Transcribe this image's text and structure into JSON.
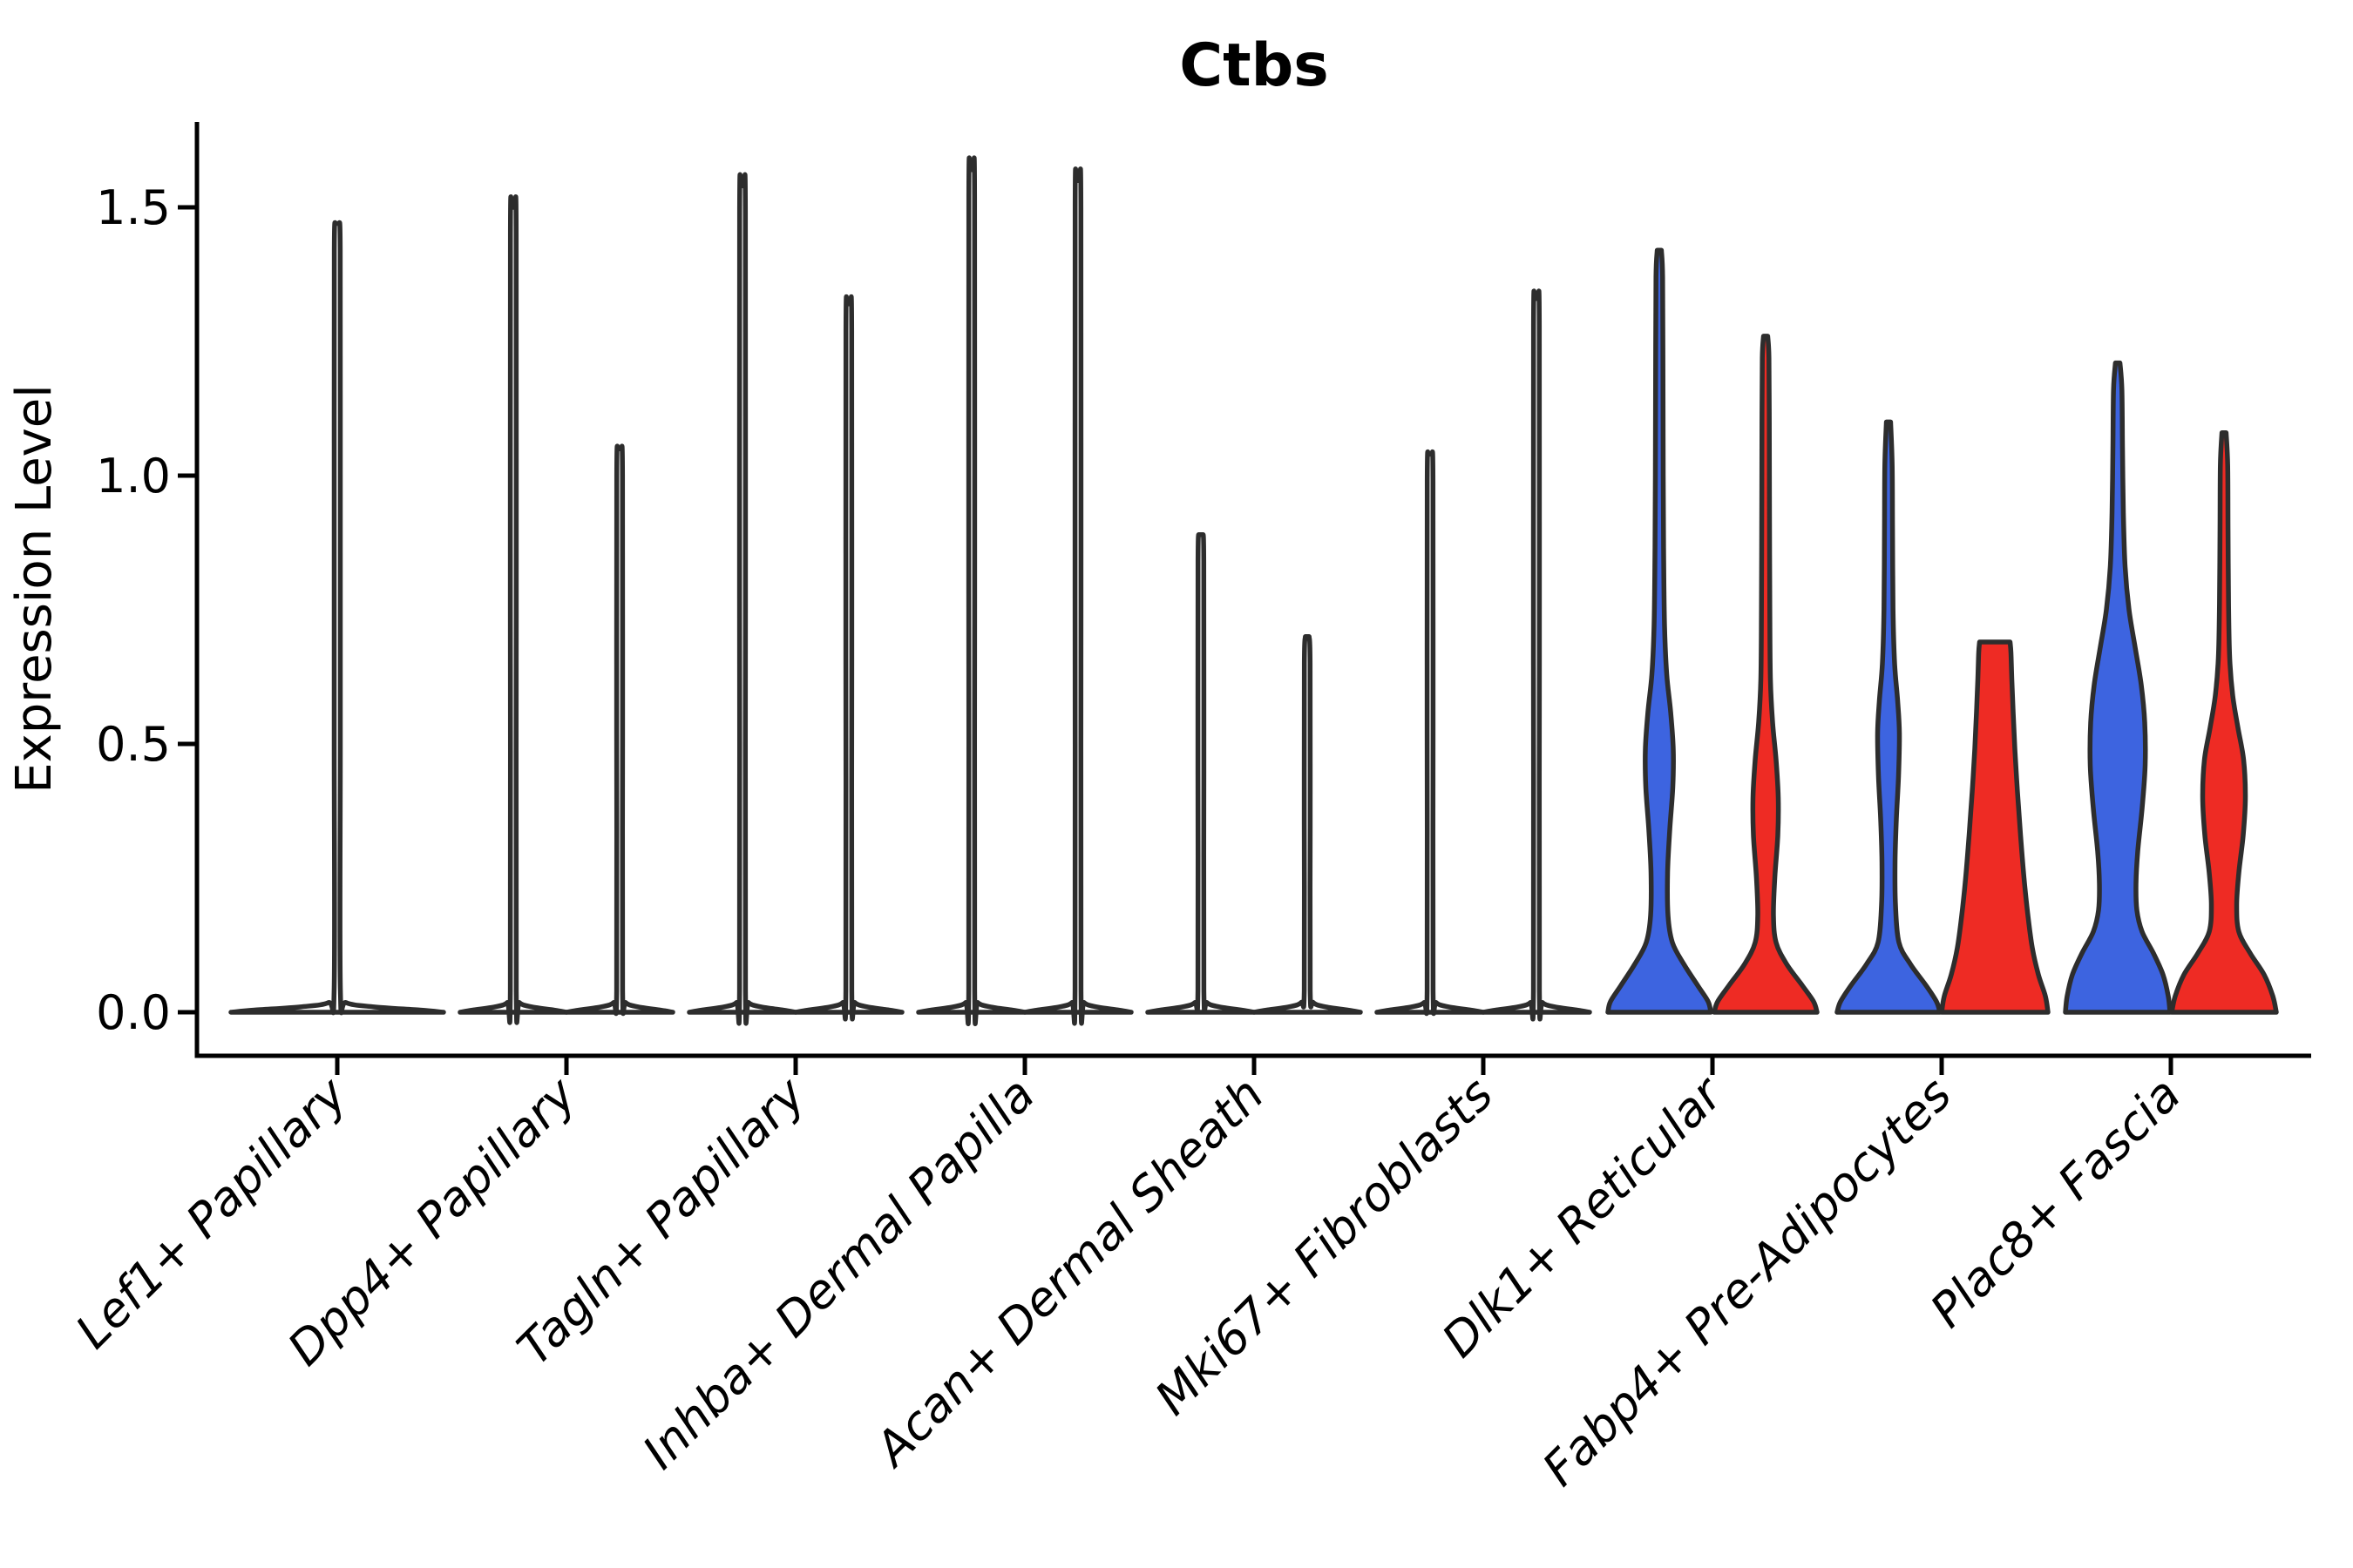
{
  "title": "Ctbs",
  "axes": {
    "y": {
      "label": "Expression Level",
      "ticks": [
        {
          "value": 0.0,
          "label": "0.0"
        },
        {
          "value": 0.5,
          "label": "0.5"
        },
        {
          "value": 1.0,
          "label": "1.0"
        },
        {
          "value": 1.5,
          "label": "1.5"
        }
      ],
      "lim": [
        -0.08,
        1.66
      ]
    },
    "x": {
      "categories": [
        "Lef1+ Papillary",
        "Dpp4+ Papillary",
        "Tagln+ Papillary",
        "Inhba+ Dermal Papilla",
        "Acan+ Dermal Sheath",
        "Mki67+ Fibroblasts",
        "Dlk1+ Reticular",
        "Fabp4+ Pre-Adipocytes",
        "Plac8+ Fascia"
      ],
      "tick_rotation_deg": 45
    }
  },
  "style": {
    "blue": "#3d64e0",
    "red": "#ee2b24",
    "outline": "#2d2d2d",
    "spine": "#000000",
    "background": "#ffffff",
    "unfilled_violin": "#ffffff"
  },
  "chart_data": {
    "type": "violin",
    "title": "Ctbs",
    "ylabel": "Expression Level",
    "ylim": [
      -0.08,
      1.66
    ],
    "yticks": [
      0.0,
      0.5,
      1.0,
      1.5
    ],
    "legend": "none",
    "grid": false,
    "categories": [
      "Lef1+ Papillary",
      "Dpp4+ Papillary",
      "Tagln+ Papillary",
      "Inhba+ Dermal Papilla",
      "Acan+ Dermal Sheath",
      "Mki67+ Fibroblasts",
      "Dlk1+ Reticular",
      "Fabp4+ Pre-Adipocytes",
      "Plac8+ Fascia"
    ],
    "note_profile_format": "profile = [expression_value, half_width_px]; density mass concentrated at 0 for all groups",
    "violins": [
      {
        "category_index": 0,
        "position": "center",
        "fill": "#ffffff",
        "peak": 1.47,
        "profile": [
          [
            0,
            122
          ],
          [
            0.004,
            95
          ],
          [
            0.01,
            42
          ],
          [
            0.018,
            10
          ],
          [
            0.04,
            3.6
          ],
          [
            0.5,
            3.5
          ],
          [
            1.0,
            3.5
          ],
          [
            1.42,
            3.4
          ],
          [
            1.47,
            2.2
          ]
        ]
      },
      {
        "category_index": 1,
        "position": "left",
        "fill": "#ffffff",
        "peak": 1.5,
        "profile": [
          [
            0,
            61
          ],
          [
            0.004,
            47
          ],
          [
            0.01,
            21
          ],
          [
            0.018,
            7
          ],
          [
            0.04,
            3.4
          ],
          [
            0.75,
            3.4
          ],
          [
            1.45,
            3.3
          ],
          [
            1.5,
            2.2
          ]
        ]
      },
      {
        "category_index": 1,
        "position": "right",
        "fill": "#ffffff",
        "peak": 1.05,
        "profile": [
          [
            0,
            61
          ],
          [
            0.004,
            47
          ],
          [
            0.01,
            21
          ],
          [
            0.018,
            7
          ],
          [
            0.04,
            3.4
          ],
          [
            0.52,
            3.4
          ],
          [
            1.0,
            3.3
          ],
          [
            1.05,
            2.2
          ]
        ]
      },
      {
        "category_index": 2,
        "position": "left",
        "fill": "#ffffff",
        "peak": 1.54,
        "profile": [
          [
            0,
            61
          ],
          [
            0.004,
            47
          ],
          [
            0.01,
            21
          ],
          [
            0.018,
            7
          ],
          [
            0.04,
            3.4
          ],
          [
            0.77,
            3.4
          ],
          [
            1.49,
            3.3
          ],
          [
            1.54,
            2.2
          ]
        ]
      },
      {
        "category_index": 2,
        "position": "right",
        "fill": "#ffffff",
        "peak": 1.32,
        "profile": [
          [
            0,
            61
          ],
          [
            0.004,
            47
          ],
          [
            0.01,
            21
          ],
          [
            0.018,
            7
          ],
          [
            0.04,
            3.4
          ],
          [
            0.66,
            3.4
          ],
          [
            1.27,
            3.3
          ],
          [
            1.32,
            2.2
          ]
        ]
      },
      {
        "category_index": 3,
        "position": "left",
        "fill": "#ffffff",
        "peak": 1.57,
        "profile": [
          [
            0,
            61
          ],
          [
            0.004,
            47
          ],
          [
            0.01,
            21
          ],
          [
            0.018,
            7
          ],
          [
            0.04,
            3.4
          ],
          [
            0.78,
            3.4
          ],
          [
            1.52,
            3.3
          ],
          [
            1.57,
            2.2
          ]
        ]
      },
      {
        "category_index": 3,
        "position": "right",
        "fill": "#ffffff",
        "peak": 1.55,
        "profile": [
          [
            0,
            61
          ],
          [
            0.004,
            47
          ],
          [
            0.01,
            21
          ],
          [
            0.018,
            7
          ],
          [
            0.04,
            3.4
          ],
          [
            0.77,
            3.4
          ],
          [
            1.5,
            3.3
          ],
          [
            1.55,
            2.2
          ]
        ]
      },
      {
        "category_index": 4,
        "position": "left",
        "fill": "#ffffff",
        "peak": 0.89,
        "profile": [
          [
            0,
            61
          ],
          [
            0.004,
            47
          ],
          [
            0.01,
            21
          ],
          [
            0.018,
            7
          ],
          [
            0.04,
            3.4
          ],
          [
            0.45,
            3.4
          ],
          [
            0.84,
            3.3
          ],
          [
            0.89,
            2.2
          ]
        ]
      },
      {
        "category_index": 4,
        "position": "right",
        "fill": "#ffffff",
        "peak": 0.7,
        "profile": [
          [
            0,
            61
          ],
          [
            0.004,
            47
          ],
          [
            0.01,
            21
          ],
          [
            0.018,
            7
          ],
          [
            0.04,
            3.4
          ],
          [
            0.35,
            3.4
          ],
          [
            0.65,
            3.3
          ],
          [
            0.7,
            2.2
          ]
        ]
      },
      {
        "category_index": 5,
        "position": "left",
        "fill": "#ffffff",
        "peak": 1.04,
        "profile": [
          [
            0,
            61
          ],
          [
            0.004,
            47
          ],
          [
            0.01,
            21
          ],
          [
            0.018,
            7
          ],
          [
            0.04,
            3.4
          ],
          [
            0.52,
            3.4
          ],
          [
            0.99,
            3.3
          ],
          [
            1.04,
            2.2
          ]
        ]
      },
      {
        "category_index": 5,
        "position": "right",
        "fill": "#ffffff",
        "peak": 1.33,
        "profile": [
          [
            0,
            61
          ],
          [
            0.004,
            47
          ],
          [
            0.01,
            21
          ],
          [
            0.018,
            7
          ],
          [
            0.04,
            3.4
          ],
          [
            0.66,
            3.4
          ],
          [
            1.28,
            3.3
          ],
          [
            1.33,
            2.2
          ]
        ]
      },
      {
        "category_index": 6,
        "position": "left",
        "fill": "#3d64e0",
        "peak": 1.42,
        "profile": [
          [
            0,
            59
          ],
          [
            0.02,
            56
          ],
          [
            0.05,
            44
          ],
          [
            0.09,
            28
          ],
          [
            0.13,
            15
          ],
          [
            0.18,
            10
          ],
          [
            0.26,
            9.5
          ],
          [
            0.34,
            12
          ],
          [
            0.42,
            15.5
          ],
          [
            0.49,
            16
          ],
          [
            0.56,
            13
          ],
          [
            0.63,
            8.5
          ],
          [
            0.72,
            6
          ],
          [
            0.85,
            5
          ],
          [
            1.0,
            4.5
          ],
          [
            1.2,
            4.2
          ],
          [
            1.37,
            3.8
          ],
          [
            1.42,
            2.4
          ]
        ]
      },
      {
        "category_index": 6,
        "position": "right",
        "fill": "#ee2b24",
        "peak": 1.26,
        "profile": [
          [
            0,
            59
          ],
          [
            0.02,
            55
          ],
          [
            0.05,
            42
          ],
          [
            0.09,
            24
          ],
          [
            0.13,
            12
          ],
          [
            0.18,
            9
          ],
          [
            0.25,
            10.5
          ],
          [
            0.33,
            14
          ],
          [
            0.4,
            14.5
          ],
          [
            0.47,
            12
          ],
          [
            0.54,
            8
          ],
          [
            0.62,
            5.5
          ],
          [
            0.75,
            4.8
          ],
          [
            0.95,
            4.4
          ],
          [
            1.1,
            4.2
          ],
          [
            1.22,
            3.8
          ],
          [
            1.26,
            2.4
          ]
        ]
      },
      {
        "category_index": 7,
        "position": "left",
        "fill": "#3d64e0",
        "peak": 1.1,
        "profile": [
          [
            0,
            59
          ],
          [
            0.02,
            55
          ],
          [
            0.05,
            43
          ],
          [
            0.09,
            25
          ],
          [
            0.13,
            12
          ],
          [
            0.2,
            8
          ],
          [
            0.28,
            7.5
          ],
          [
            0.36,
            9
          ],
          [
            0.44,
            11.5
          ],
          [
            0.52,
            12.5
          ],
          [
            0.58,
            10.5
          ],
          [
            0.65,
            7
          ],
          [
            0.75,
            5.2
          ],
          [
            0.9,
            4.6
          ],
          [
            1.02,
            4.2
          ],
          [
            1.1,
            2.4
          ]
        ]
      },
      {
        "category_index": 7,
        "position": "right",
        "fill": "#ee2b24",
        "peak": 0.69,
        "profile": [
          [
            0,
            61
          ],
          [
            0.03,
            58
          ],
          [
            0.07,
            50
          ],
          [
            0.12,
            43
          ],
          [
            0.18,
            38
          ],
          [
            0.25,
            33.5
          ],
          [
            0.33,
            29.5
          ],
          [
            0.41,
            26
          ],
          [
            0.49,
            23
          ],
          [
            0.56,
            21
          ],
          [
            0.62,
            19.5
          ],
          [
            0.67,
            18.5
          ],
          [
            0.69,
            17.5
          ]
        ]
      },
      {
        "category_index": 8,
        "position": "left",
        "fill": "#3d64e0",
        "peak": 1.21,
        "profile": [
          [
            0,
            60
          ],
          [
            0.03,
            58
          ],
          [
            0.07,
            52
          ],
          [
            0.11,
            41
          ],
          [
            0.15,
            28
          ],
          [
            0.19,
            22
          ],
          [
            0.24,
            21
          ],
          [
            0.3,
            23
          ],
          [
            0.38,
            28
          ],
          [
            0.46,
            31.5
          ],
          [
            0.54,
            31
          ],
          [
            0.61,
            27
          ],
          [
            0.68,
            20
          ],
          [
            0.75,
            13
          ],
          [
            0.83,
            8.5
          ],
          [
            0.93,
            6.5
          ],
          [
            1.05,
            5.5
          ],
          [
            1.16,
            4.8
          ],
          [
            1.21,
            2.6
          ]
        ]
      },
      {
        "category_index": 8,
        "position": "right",
        "fill": "#ee2b24",
        "peak": 1.08,
        "profile": [
          [
            0,
            60
          ],
          [
            0.03,
            56
          ],
          [
            0.07,
            46
          ],
          [
            0.11,
            30
          ],
          [
            0.15,
            17
          ],
          [
            0.2,
            14.5
          ],
          [
            0.26,
            17
          ],
          [
            0.33,
            22
          ],
          [
            0.4,
            24.5
          ],
          [
            0.47,
            22.5
          ],
          [
            0.53,
            16
          ],
          [
            0.59,
            10
          ],
          [
            0.66,
            6.5
          ],
          [
            0.76,
            5.2
          ],
          [
            0.9,
            4.6
          ],
          [
            1.02,
            4.2
          ],
          [
            1.08,
            2.4
          ]
        ]
      }
    ]
  }
}
